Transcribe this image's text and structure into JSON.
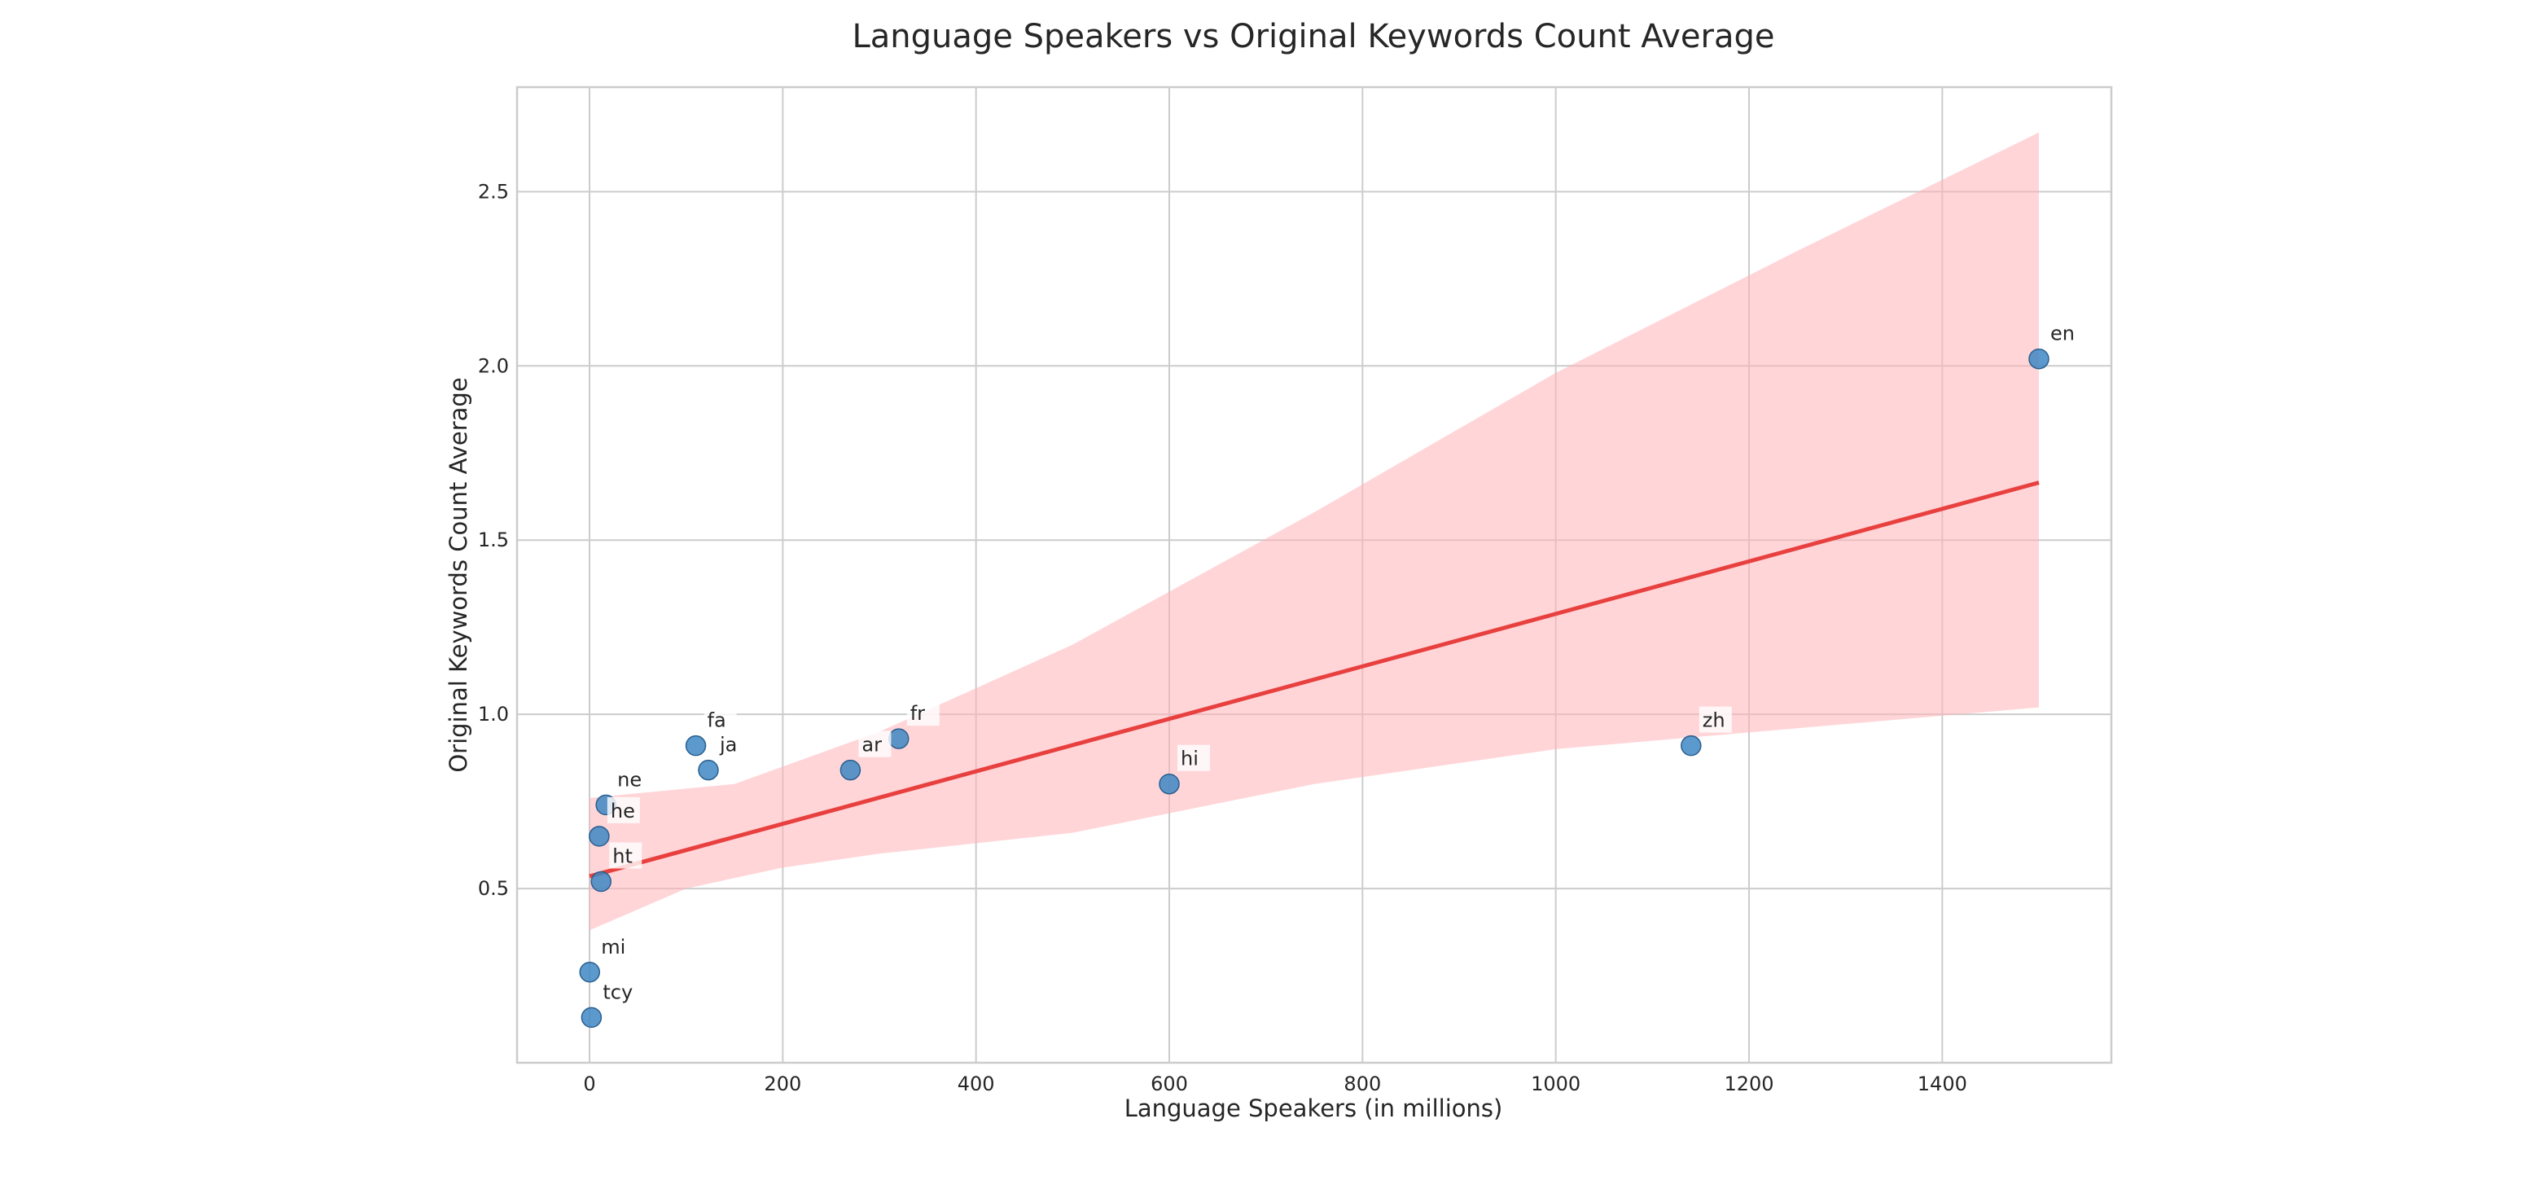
{
  "chart_data": {
    "type": "scatter",
    "title": "Language Speakers vs Original Keywords Count Average",
    "xlabel": "Language Speakers (in millions)",
    "ylabel": "Original Keywords Count Average",
    "xlim": [
      -75,
      1575
    ],
    "ylim": [
      0.0,
      2.8
    ],
    "xticks": [
      0,
      200,
      400,
      600,
      800,
      1000,
      1200,
      1400
    ],
    "yticks": [
      0.5,
      1.0,
      1.5,
      2.0,
      2.5
    ],
    "grid": true,
    "points": [
      {
        "label": "en",
        "x": 1500,
        "y": 2.02
      },
      {
        "label": "zh",
        "x": 1140,
        "y": 0.91
      },
      {
        "label": "hi",
        "x": 600,
        "y": 0.8
      },
      {
        "label": "fr",
        "x": 320,
        "y": 0.93
      },
      {
        "label": "ar",
        "x": 270,
        "y": 0.84
      },
      {
        "label": "fa",
        "x": 110,
        "y": 0.91
      },
      {
        "label": "ja",
        "x": 123,
        "y": 0.84
      },
      {
        "label": "ne",
        "x": 17,
        "y": 0.74
      },
      {
        "label": "he",
        "x": 10,
        "y": 0.65
      },
      {
        "label": "ht",
        "x": 12,
        "y": 0.52
      },
      {
        "label": "mi",
        "x": 0.2,
        "y": 0.26
      },
      {
        "label": "tcy",
        "x": 2,
        "y": 0.13
      }
    ],
    "regression": {
      "x": [
        0,
        1500
      ],
      "y": [
        0.535,
        1.665
      ],
      "ci_upper": [
        [
          0,
          0.76
        ],
        [
          150,
          0.8
        ],
        [
          300,
          0.95
        ],
        [
          500,
          1.2
        ],
        [
          750,
          1.58
        ],
        [
          1000,
          1.98
        ],
        [
          1250,
          2.33
        ],
        [
          1500,
          2.67
        ]
      ],
      "ci_lower": [
        [
          0,
          0.38
        ],
        [
          100,
          0.5
        ],
        [
          200,
          0.56
        ],
        [
          300,
          0.6
        ],
        [
          500,
          0.66
        ],
        [
          750,
          0.8
        ],
        [
          1000,
          0.9
        ],
        [
          1250,
          0.96
        ],
        [
          1500,
          1.02
        ]
      ]
    },
    "colors": {
      "point": "#3f87c3",
      "line": "#e8403f",
      "band": "#ffb3b8"
    }
  }
}
